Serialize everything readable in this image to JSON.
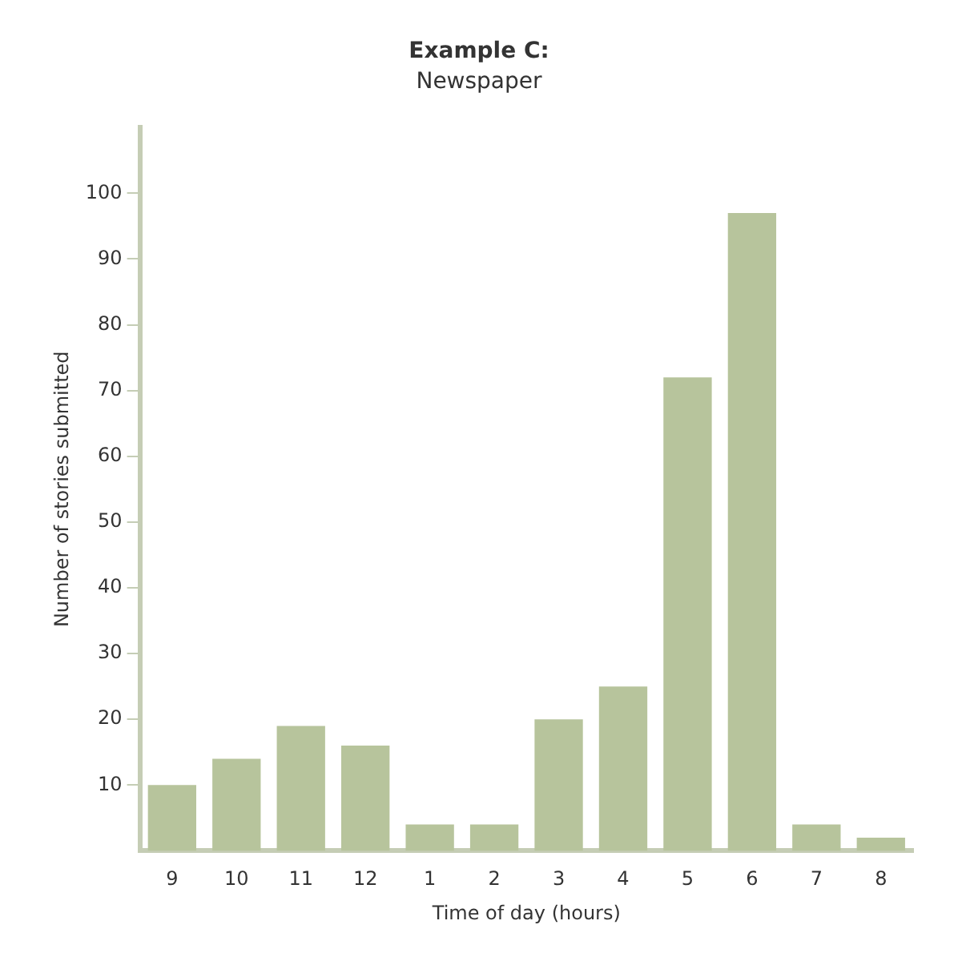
{
  "chart_data": {
    "type": "bar",
    "title": "Example C:",
    "subtitle": "Newspaper",
    "xlabel": "Time of day (hours)",
    "ylabel": "Number of stories submitted",
    "categories": [
      "9",
      "10",
      "11",
      "12",
      "1",
      "2",
      "3",
      "4",
      "5",
      "6",
      "7",
      "8"
    ],
    "values": [
      10,
      14,
      19,
      16,
      4,
      4,
      20,
      25,
      72,
      97,
      4,
      2
    ],
    "color": "#b7c49c",
    "ylim": [
      0,
      110
    ],
    "yticks": [
      10,
      20,
      30,
      40,
      50,
      60,
      70,
      80,
      90,
      100
    ],
    "grid": false,
    "legend": false
  }
}
